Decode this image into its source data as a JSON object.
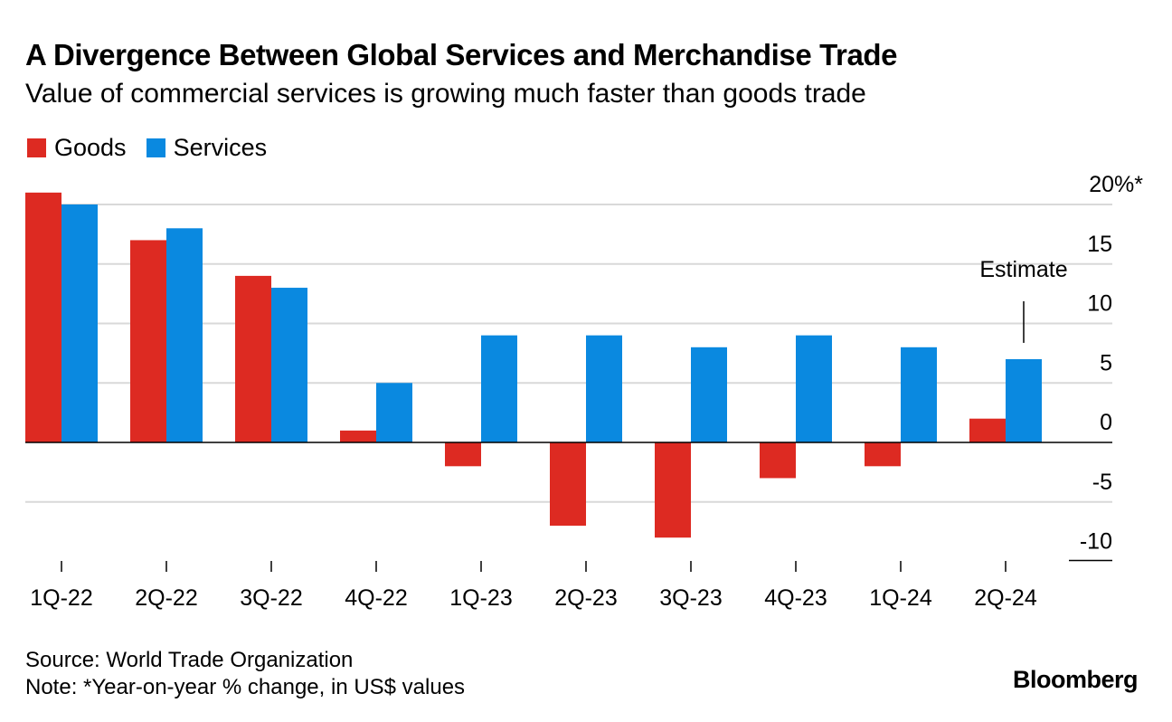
{
  "title": "A Divergence Between Global Services and Merchandise Trade",
  "subtitle": "Value of commercial services is growing much faster than goods trade",
  "legend": [
    {
      "label": "Goods",
      "color": "#dd2a22"
    },
    {
      "label": "Services",
      "color": "#0a89e0"
    }
  ],
  "chart_data": {
    "type": "bar",
    "categories": [
      "1Q-22",
      "2Q-22",
      "3Q-22",
      "4Q-22",
      "1Q-23",
      "2Q-23",
      "3Q-23",
      "4Q-23",
      "1Q-24",
      "2Q-24"
    ],
    "series": [
      {
        "name": "Goods",
        "color": "#dd2a22",
        "values": [
          21,
          17,
          14,
          1,
          -2,
          -7,
          -8,
          -3,
          -2,
          2
        ]
      },
      {
        "name": "Services",
        "color": "#0a89e0",
        "values": [
          20,
          18,
          13,
          5,
          9,
          9,
          8,
          9,
          8,
          7
        ]
      }
    ],
    "y_ticks": [
      {
        "value": 20,
        "label": "20%*"
      },
      {
        "value": 15,
        "label": "15"
      },
      {
        "value": 10,
        "label": "10"
      },
      {
        "value": 5,
        "label": "5"
      },
      {
        "value": 0,
        "label": "0"
      },
      {
        "value": -5,
        "label": "-5"
      },
      {
        "value": -10,
        "label": "-10"
      }
    ],
    "ylim": [
      -10,
      20
    ],
    "annotation": {
      "text": "Estimate",
      "category": "2Q-24",
      "series": "Services"
    }
  },
  "footer": {
    "source": "Source: World Trade Organization",
    "note": "Note: *Year-on-year % change, in US$ values"
  },
  "brand": "Bloomberg"
}
